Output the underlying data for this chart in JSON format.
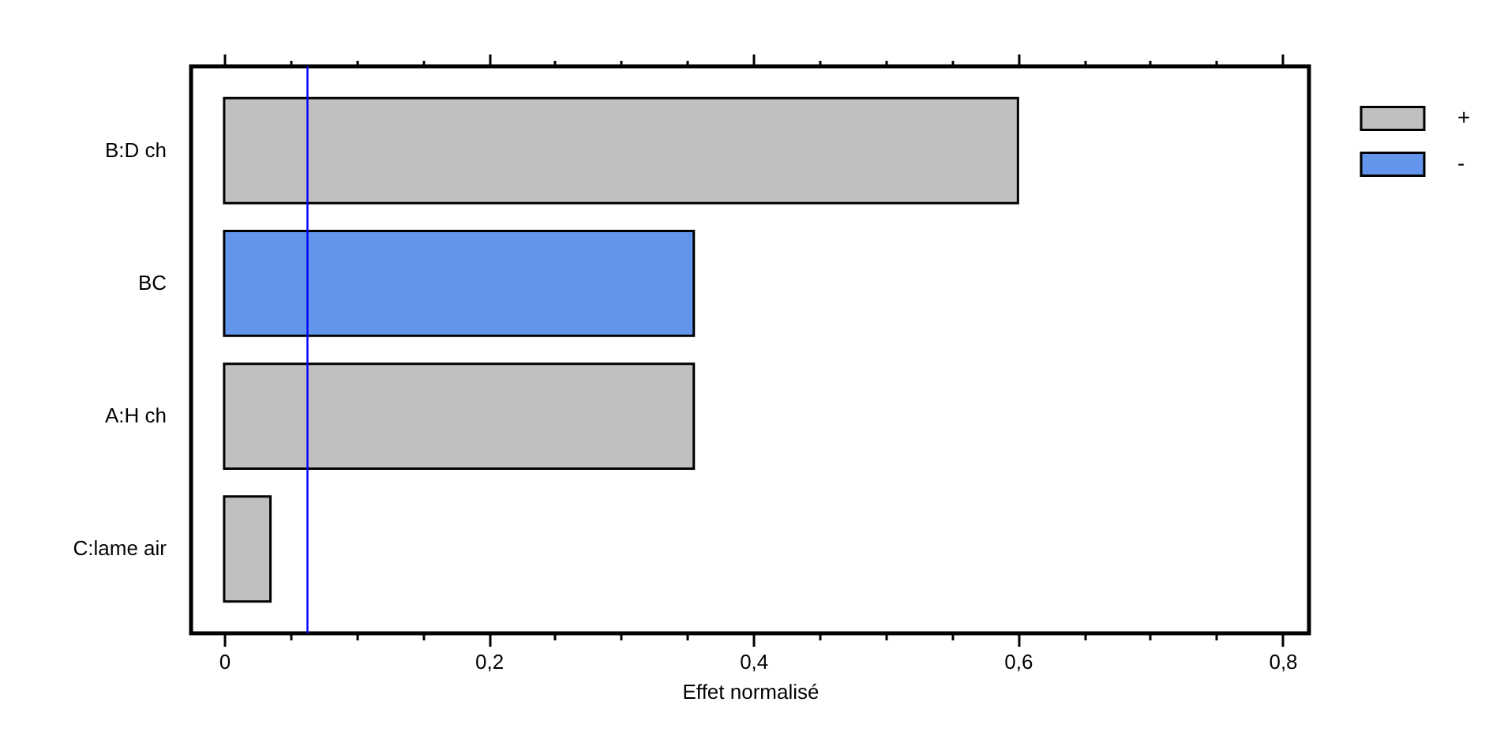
{
  "chart_data": {
    "type": "bar",
    "orientation": "horizontal",
    "categories": [
      "B:D ch",
      "BC",
      "A:H ch",
      "C:lame air"
    ],
    "series": [
      {
        "name": "+",
        "color": "#c0c0c0",
        "values": [
          0.6,
          null,
          0.355,
          0.035
        ]
      },
      {
        "name": "-",
        "color": "#6495ed",
        "values": [
          null,
          0.355,
          null,
          null
        ]
      }
    ],
    "xlabel": "Effet normalisé",
    "xlim": [
      -0.025,
      0.82
    ],
    "xticks": [
      0,
      {
        "value": 0.05,
        "label": null
      },
      {
        "value": 0.1,
        "label": null
      },
      {
        "value": 0.15,
        "label": null
      },
      {
        "value": 0.2,
        "label": "0,2"
      },
      {
        "value": 0.25,
        "label": null
      },
      {
        "value": 0.3,
        "label": null
      },
      {
        "value": 0.35,
        "label": null
      },
      {
        "value": 0.4,
        "label": "0,4"
      },
      {
        "value": 0.45,
        "label": null
      },
      {
        "value": 0.5,
        "label": null
      },
      {
        "value": 0.55,
        "label": null
      },
      {
        "value": 0.6,
        "label": "0,6"
      },
      {
        "value": 0.65,
        "label": null
      },
      {
        "value": 0.7,
        "label": null
      },
      {
        "value": 0.75,
        "label": null
      },
      {
        "value": 0.8,
        "label": "0,8"
      }
    ],
    "ref_lines": [
      {
        "axis": "x",
        "value": 0.063,
        "color": "#0000ff"
      }
    ],
    "legend": "top right"
  }
}
